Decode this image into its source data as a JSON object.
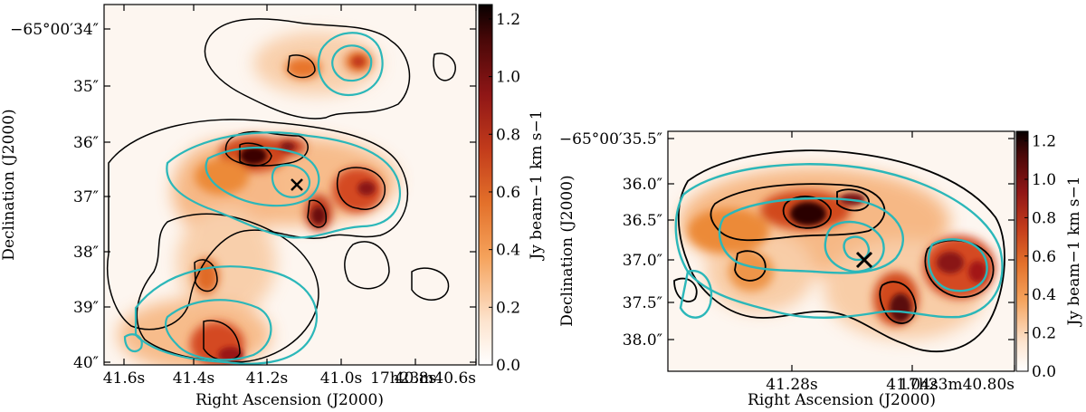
{
  "chart_data": [
    {
      "type": "heatmap",
      "title": "",
      "xlabel": "Right Ascension (J2000)",
      "ylabel": "Declination (J2000)",
      "x_ticks": [
        "41.6s",
        "41.4s",
        "41.2s",
        "41.0s",
        "40.8s",
        "17h23m40.6s"
      ],
      "y_ticks": [
        "−65°00′34″",
        "35″",
        "36″",
        "37″",
        "38″",
        "39″",
        "40″"
      ],
      "colorbar": {
        "label": "Jy beam−1 km s−1",
        "ticks": [
          "0.0",
          "0.2",
          "0.4",
          "0.6",
          "0.8",
          "1.0",
          "1.2"
        ],
        "range": [
          0.0,
          1.25
        ]
      },
      "markers": [
        {
          "type": "cross",
          "label": ""
        }
      ],
      "contours": [
        "black",
        "cyan"
      ]
    },
    {
      "type": "heatmap",
      "title": "",
      "xlabel": "Right Ascension (J2000)",
      "ylabel": "Declination (J2000)",
      "x_ticks": [
        "41.28s",
        "41.04s",
        "17h23m40.80s"
      ],
      "y_ticks": [
        "−65°00′35.5″",
        "36.0″",
        "36.5″",
        "37.0″",
        "37.5″",
        "38.0″"
      ],
      "colorbar": {
        "label": "Jy beam−1 km s−1",
        "ticks": [
          "0.0",
          "0.2",
          "0.4",
          "0.6",
          "0.8",
          "1.0",
          "1.2"
        ],
        "range": [
          0.0,
          1.25
        ]
      },
      "markers": [
        {
          "type": "cross",
          "label": ""
        }
      ],
      "contours": [
        "black",
        "cyan"
      ]
    }
  ],
  "colors": {
    "map_low": "#fdf2ea",
    "map_mid": "#ee8a35",
    "map_high": "#a31418",
    "map_peak": "#1a0505",
    "contour_black": "#000000",
    "contour_cyan": "#2bb7b9"
  }
}
